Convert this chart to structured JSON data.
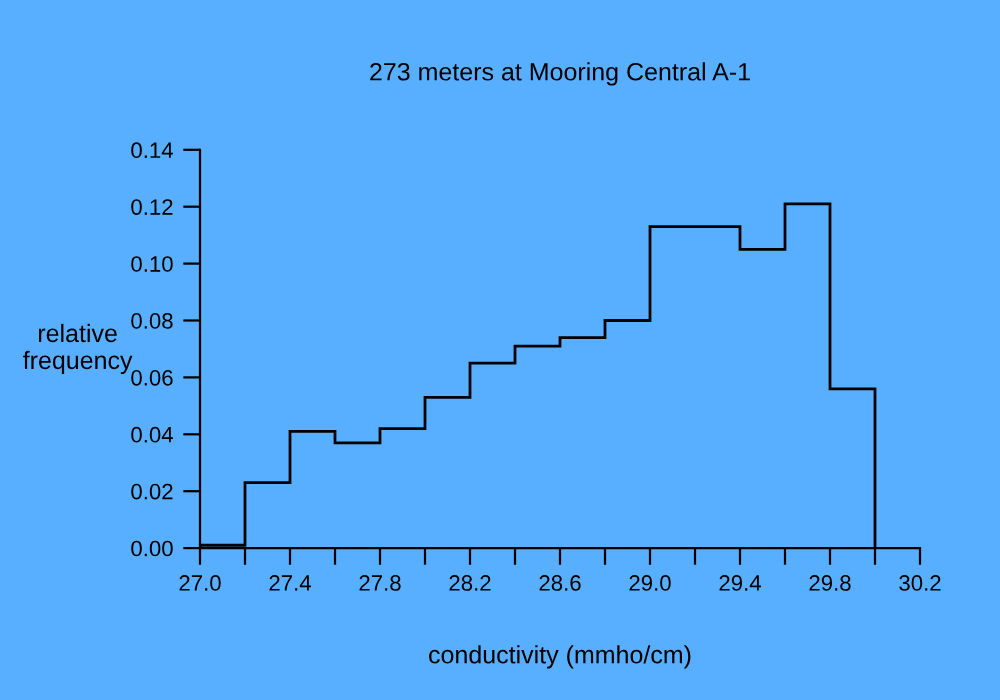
{
  "chart_data": {
    "type": "histogram",
    "title": "273 meters at Mooring Central A-1",
    "xlabel": "conductivity (mmho/cm)",
    "ylabel": "relative\nfrequency",
    "bins": [
      27.0,
      27.2,
      27.4,
      27.6,
      27.8,
      28.0,
      28.2,
      28.4,
      28.6,
      28.8,
      29.0,
      29.2,
      29.4,
      29.6,
      29.8,
      30.0
    ],
    "values": [
      0.001,
      0.023,
      0.041,
      0.037,
      0.042,
      0.053,
      0.065,
      0.071,
      0.074,
      0.08,
      0.113,
      0.113,
      0.105,
      0.121,
      0.056
    ],
    "color": "#000000",
    "xlim": [
      27.0,
      30.2
    ],
    "xticks": [
      {
        "value": 27.0,
        "label": "27.0"
      },
      {
        "value": 27.2,
        "label": null
      },
      {
        "value": 27.4,
        "label": "27.4"
      },
      {
        "value": 27.6,
        "label": null
      },
      {
        "value": 27.8,
        "label": "27.8"
      },
      {
        "value": 28.0,
        "label": null
      },
      {
        "value": 28.2,
        "label": "28.2"
      },
      {
        "value": 28.4,
        "label": null
      },
      {
        "value": 28.6,
        "label": "28.6"
      },
      {
        "value": 28.8,
        "label": null
      },
      {
        "value": 29.0,
        "label": "29.0"
      },
      {
        "value": 29.2,
        "label": null
      },
      {
        "value": 29.4,
        "label": "29.4"
      },
      {
        "value": 29.6,
        "label": null
      },
      {
        "value": 29.8,
        "label": "29.8"
      },
      {
        "value": 30.0,
        "label": null
      },
      {
        "value": 30.2,
        "label": "30.2"
      }
    ],
    "ylim": [
      0,
      0.14
    ],
    "yticks": [
      {
        "value": 0,
        "label": "0.00"
      },
      {
        "value": 0.02,
        "label": "0.02"
      },
      {
        "value": 0.04,
        "label": "0.04"
      },
      {
        "value": 0.06,
        "label": "0.06"
      },
      {
        "value": 0.08,
        "label": "0.08"
      },
      {
        "value": 0.1,
        "label": "0.10"
      },
      {
        "value": 0.12,
        "label": "0.12"
      },
      {
        "value": 0.14,
        "label": "0.14"
      }
    ],
    "grid": false
  }
}
